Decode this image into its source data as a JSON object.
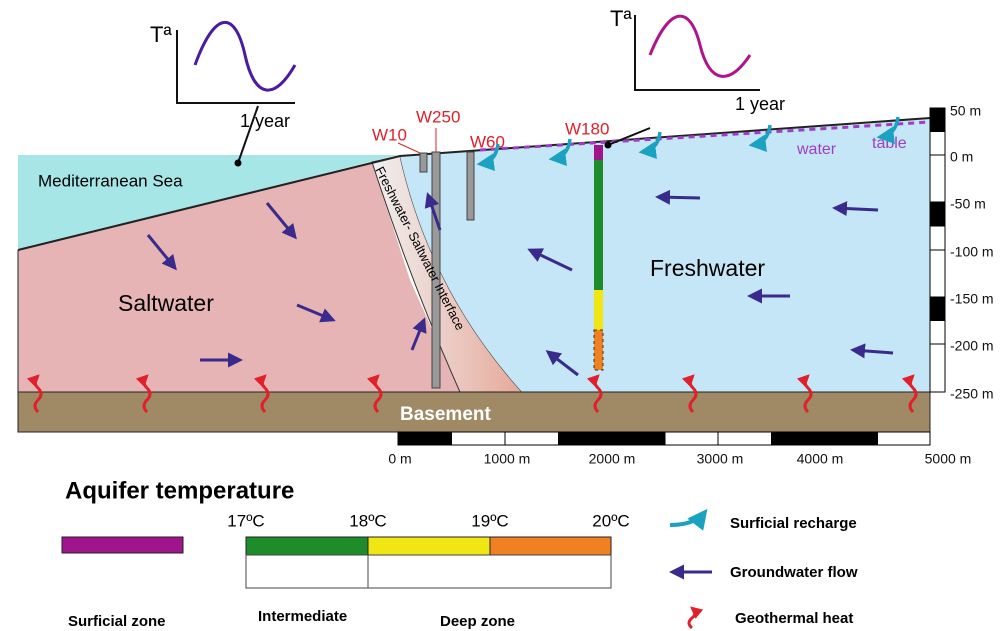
{
  "diagram": {
    "inset_plots": [
      {
        "label": "Tª",
        "period": "1 year"
      },
      {
        "label": "Tª",
        "period": "1 year"
      }
    ],
    "wells": [
      "W10",
      "W250",
      "W60",
      "W180"
    ],
    "sea": "Mediterranean Sea",
    "saltwater": "Saltwater",
    "freshwater": "Freshwater",
    "interface": "Freshwater- Saltwater Interface",
    "basement": "Basement",
    "water_table": [
      "water",
      "table"
    ],
    "depth_scale": [
      "50 m",
      "0 m",
      "-50 m",
      "-100 m",
      "-150 m",
      "-200 m",
      "-250 m"
    ],
    "distance_scale": [
      "0 m",
      "1000 m",
      "2000 m",
      "3000 m",
      "4000 m",
      "5000 m"
    ]
  },
  "legend": {
    "title": "Aquifer temperature",
    "temperatures": [
      "17ºC",
      "18ºC",
      "19ºC",
      "20ºC"
    ],
    "zones": [
      "Surficial zone",
      "Intermediate",
      "Deep zone"
    ],
    "symbols": [
      "Surficial recharge",
      "Groundwater flow",
      "Geothermal heat"
    ]
  }
}
